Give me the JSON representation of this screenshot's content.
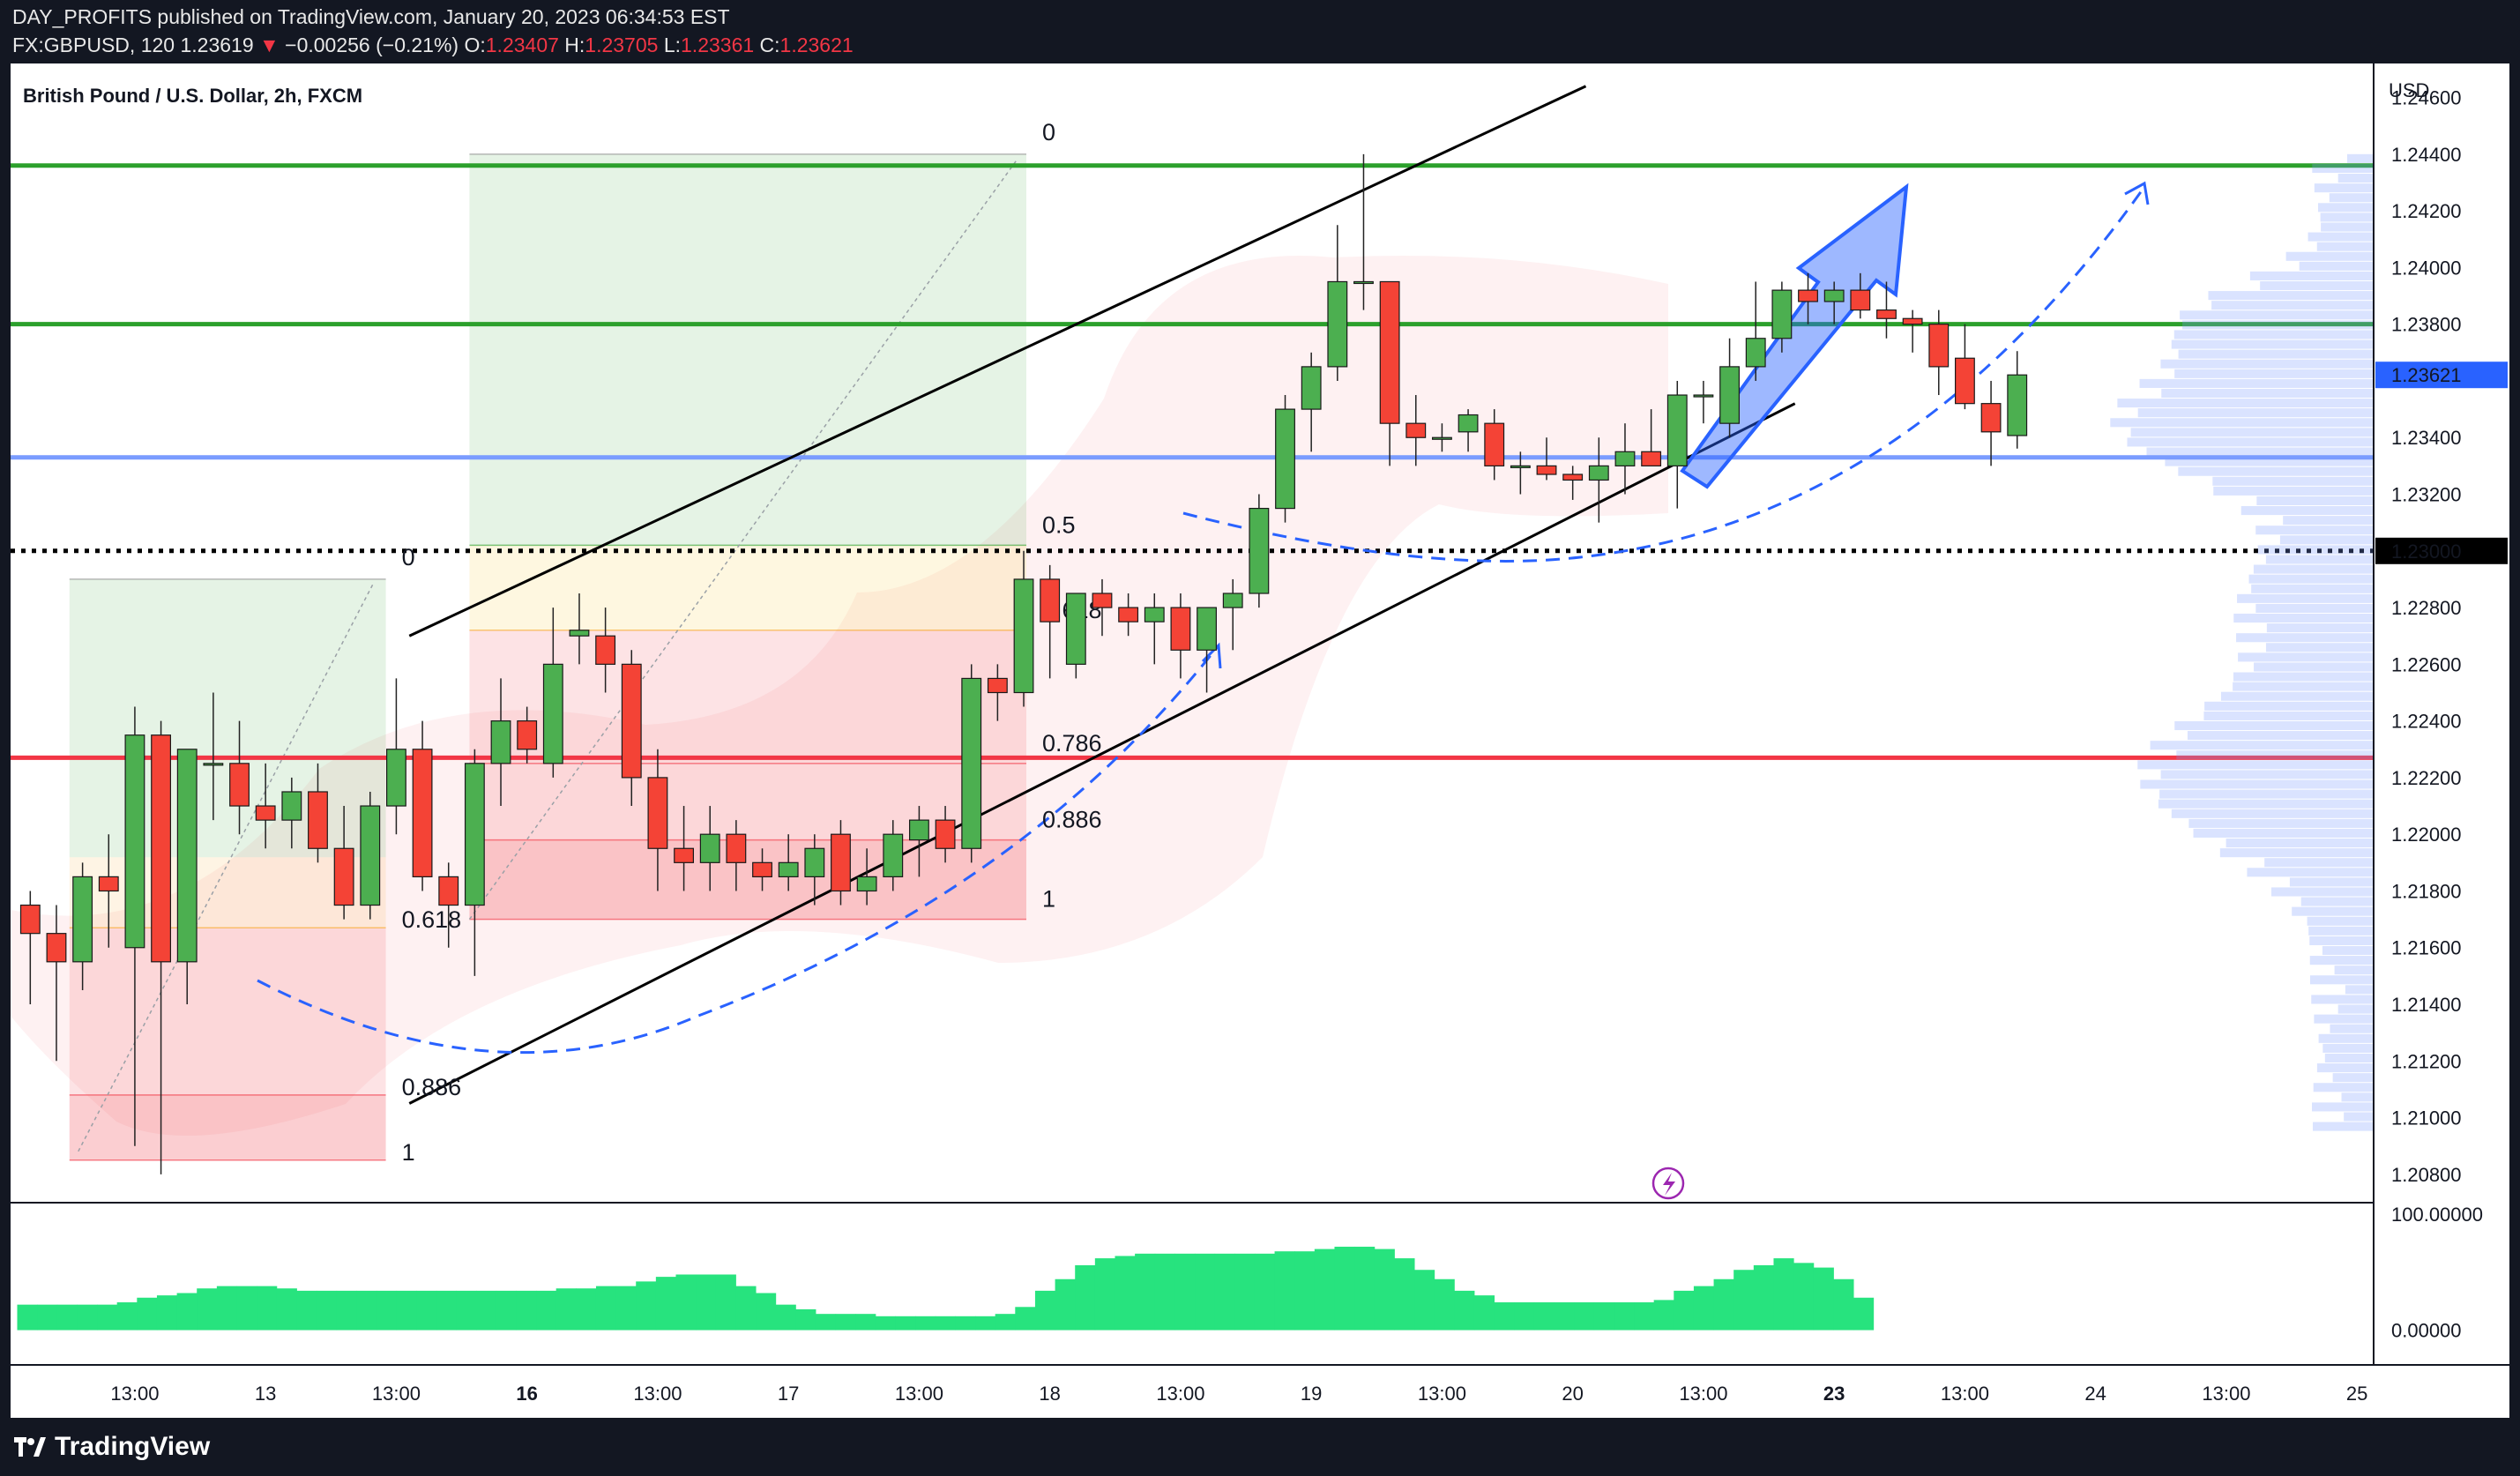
{
  "header": {
    "publisher": "DAY_PROFITS published on TradingView.com, January 20, 2023 06:34:53 EST",
    "symbol": "FX:GBPUSD, 120",
    "last": "1.23619",
    "change_arrow": "▼",
    "change": "−0.00256 (−0.21%)",
    "o_label": "O:",
    "o": "1.23407",
    "h_label": "H:",
    "h": "1.23705",
    "l_label": "L:",
    "l": "1.23361",
    "c_label": "C:",
    "c": "1.23621"
  },
  "footer": {
    "brand": "TradingView",
    "logo_icon": "tradingview-logo-icon"
  },
  "chart_data": [
    {
      "type": "candlestick",
      "title": "British Pound / U.S. Dollar, 2h, FXCM",
      "currency": "USD",
      "ylim": [
        1.207,
        1.2472
      ],
      "y_ticks": [
        "1.24600",
        "1.24400",
        "1.24200",
        "1.24000",
        "1.23800",
        "1.23600",
        "1.23400",
        "1.23200",
        "1.23000",
        "1.22800",
        "1.22600",
        "1.22400",
        "1.22200",
        "1.22000",
        "1.21800",
        "1.21600",
        "1.21400",
        "1.21200",
        "1.21000",
        "1.20800"
      ],
      "x_ticks": [
        {
          "label": "13:00",
          "bar": 4,
          "bold": false
        },
        {
          "label": "13",
          "bar": 9,
          "bold": false
        },
        {
          "label": "13:00",
          "bar": 14,
          "bold": false
        },
        {
          "label": "16",
          "bar": 19,
          "bold": true
        },
        {
          "label": "13:00",
          "bar": 24,
          "bold": false
        },
        {
          "label": "17",
          "bar": 29,
          "bold": false
        },
        {
          "label": "13:00",
          "bar": 34,
          "bold": false
        },
        {
          "label": "18",
          "bar": 39,
          "bold": false
        },
        {
          "label": "13:00",
          "bar": 44,
          "bold": false
        },
        {
          "label": "19",
          "bar": 49,
          "bold": false
        },
        {
          "label": "13:00",
          "bar": 54,
          "bold": false
        },
        {
          "label": "20",
          "bar": 59,
          "bold": false
        },
        {
          "label": "13:00",
          "bar": 64,
          "bold": false
        },
        {
          "label": "23",
          "bar": 69,
          "bold": true
        },
        {
          "label": "13:00",
          "bar": 74,
          "bold": false
        },
        {
          "label": "24",
          "bar": 79,
          "bold": false
        },
        {
          "label": "13:00",
          "bar": 84,
          "bold": false
        },
        {
          "label": "25",
          "bar": 89,
          "bold": false
        }
      ],
      "candles": [
        [
          1.2175,
          1.218,
          1.214,
          1.2165
        ],
        [
          1.2165,
          1.2175,
          1.212,
          1.2155
        ],
        [
          1.2155,
          1.219,
          1.2145,
          1.2185
        ],
        [
          1.2185,
          1.22,
          1.216,
          1.218
        ],
        [
          1.216,
          1.2245,
          1.209,
          1.2235
        ],
        [
          1.2235,
          1.224,
          1.208,
          1.2155
        ],
        [
          1.2155,
          1.223,
          1.214,
          1.223
        ],
        [
          1.2225,
          1.225,
          1.2205,
          1.2225
        ],
        [
          1.2225,
          1.224,
          1.22,
          1.221
        ],
        [
          1.221,
          1.2225,
          1.2195,
          1.2205
        ],
        [
          1.2205,
          1.222,
          1.2195,
          1.2215
        ],
        [
          1.2215,
          1.2225,
          1.219,
          1.2195
        ],
        [
          1.2195,
          1.221,
          1.217,
          1.2175
        ],
        [
          1.2175,
          1.2215,
          1.217,
          1.221
        ],
        [
          1.221,
          1.2255,
          1.22,
          1.223
        ],
        [
          1.223,
          1.224,
          1.218,
          1.2185
        ],
        [
          1.2185,
          1.219,
          1.216,
          1.2175
        ],
        [
          1.2175,
          1.223,
          1.215,
          1.2225
        ],
        [
          1.2225,
          1.2255,
          1.221,
          1.224
        ],
        [
          1.224,
          1.2245,
          1.2225,
          1.223
        ],
        [
          1.2225,
          1.228,
          1.222,
          1.226
        ],
        [
          1.227,
          1.2285,
          1.226,
          1.2272
        ],
        [
          1.227,
          1.228,
          1.225,
          1.226
        ],
        [
          1.226,
          1.2265,
          1.221,
          1.222
        ],
        [
          1.222,
          1.223,
          1.218,
          1.2195
        ],
        [
          1.2195,
          1.221,
          1.218,
          1.219
        ],
        [
          1.219,
          1.221,
          1.218,
          1.22
        ],
        [
          1.22,
          1.2205,
          1.218,
          1.219
        ],
        [
          1.219,
          1.2195,
          1.218,
          1.2185
        ],
        [
          1.2185,
          1.22,
          1.218,
          1.219
        ],
        [
          1.2185,
          1.22,
          1.2175,
          1.2195
        ],
        [
          1.22,
          1.2205,
          1.2175,
          1.218
        ],
        [
          1.218,
          1.2195,
          1.2175,
          1.2185
        ],
        [
          1.2185,
          1.2205,
          1.218,
          1.22
        ],
        [
          1.2198,
          1.221,
          1.2185,
          1.2205
        ],
        [
          1.2205,
          1.221,
          1.219,
          1.2195
        ],
        [
          1.2195,
          1.226,
          1.219,
          1.2255
        ],
        [
          1.2255,
          1.226,
          1.224,
          1.225
        ],
        [
          1.225,
          1.23,
          1.2245,
          1.229
        ],
        [
          1.229,
          1.2295,
          1.2255,
          1.2275
        ],
        [
          1.226,
          1.2285,
          1.2255,
          1.2285
        ],
        [
          1.2285,
          1.229,
          1.227,
          1.228
        ],
        [
          1.228,
          1.2285,
          1.227,
          1.2275
        ],
        [
          1.2275,
          1.2285,
          1.226,
          1.228
        ],
        [
          1.228,
          1.2285,
          1.2255,
          1.2265
        ],
        [
          1.2265,
          1.228,
          1.225,
          1.228
        ],
        [
          1.228,
          1.229,
          1.2265,
          1.2285
        ],
        [
          1.2285,
          1.232,
          1.228,
          1.2315
        ],
        [
          1.2315,
          1.2355,
          1.231,
          1.235
        ],
        [
          1.235,
          1.237,
          1.2335,
          1.2365
        ],
        [
          1.2365,
          1.2415,
          1.236,
          1.2395
        ],
        [
          1.2395,
          1.244,
          1.2385,
          1.2395
        ],
        [
          1.2395,
          1.2395,
          1.233,
          1.2345
        ],
        [
          1.2345,
          1.2355,
          1.233,
          1.234
        ],
        [
          1.234,
          1.2345,
          1.2335,
          1.234
        ],
        [
          1.2342,
          1.235,
          1.2335,
          1.2348
        ],
        [
          1.2345,
          1.235,
          1.2325,
          1.233
        ],
        [
          1.233,
          1.2335,
          1.232,
          1.233
        ],
        [
          1.233,
          1.234,
          1.2325,
          1.2327
        ],
        [
          1.2327,
          1.233,
          1.2318,
          1.2325
        ],
        [
          1.2325,
          1.234,
          1.231,
          1.233
        ],
        [
          1.233,
          1.2345,
          1.232,
          1.2335
        ],
        [
          1.2335,
          1.235,
          1.233,
          1.233
        ],
        [
          1.233,
          1.236,
          1.2315,
          1.2355
        ],
        [
          1.2355,
          1.236,
          1.2345,
          1.2355
        ],
        [
          1.2345,
          1.2375,
          1.234,
          1.2365
        ],
        [
          1.2365,
          1.2395,
          1.236,
          1.2375
        ],
        [
          1.2375,
          1.2395,
          1.237,
          1.2392
        ],
        [
          1.2392,
          1.2398,
          1.238,
          1.2388
        ],
        [
          1.2388,
          1.2395,
          1.238,
          1.2392
        ],
        [
          1.2392,
          1.2398,
          1.2382,
          1.2385
        ],
        [
          1.2385,
          1.2395,
          1.2375,
          1.2382
        ],
        [
          1.2382,
          1.2385,
          1.237,
          1.238
        ],
        [
          1.238,
          1.2385,
          1.2355,
          1.2365
        ],
        [
          1.2368,
          1.238,
          1.235,
          1.2352
        ],
        [
          1.2352,
          1.236,
          1.233,
          1.2342
        ],
        [
          1.23407,
          1.23705,
          1.23361,
          1.23621
        ]
      ],
      "hlines": [
        {
          "price": 1.2436,
          "color": "#2ca02c",
          "width": 5,
          "style": "solid"
        },
        {
          "price": 1.238,
          "color": "#2ca02c",
          "width": 5,
          "style": "solid"
        },
        {
          "price": 1.2333,
          "color": "#7a9cff",
          "width": 5,
          "style": "solid"
        },
        {
          "price": 1.23,
          "color": "#000000",
          "width": 5,
          "style": "dotted"
        },
        {
          "price": 1.2227,
          "color": "#f23645",
          "width": 5,
          "style": "solid"
        }
      ],
      "price_tags": [
        {
          "label": "1.23621",
          "price": 1.23621,
          "bg": "#2962ff",
          "fg": "#ffffff"
        },
        {
          "label": "1.23000",
          "price": 1.23,
          "bg": "#000000",
          "fg": "#ffffff"
        }
      ],
      "fib_left": {
        "levels": [
          {
            "label": "0",
            "price": 1.229,
            "color": "#8a8a8a"
          },
          {
            "label": "0.618",
            "price": 1.2167,
            "color": "#f6a623"
          },
          {
            "label": "0.886",
            "price": 1.2108,
            "color": "#f23645"
          },
          {
            "label": "1",
            "price": 1.2085,
            "color": "#f23645"
          }
        ]
      },
      "fib_right": {
        "levels": [
          {
            "label": "0",
            "price": 1.244,
            "color": "#8a8a8a"
          },
          {
            "label": "0.5",
            "price": 1.2302,
            "color": "#2ca02c"
          },
          {
            "label": "0.618",
            "price": 1.2272,
            "color": "#f6a623"
          },
          {
            "label": "0.786",
            "price": 1.2225,
            "color": "#f23645"
          },
          {
            "label": "0.886",
            "price": 1.2198,
            "color": "#f23645"
          },
          {
            "label": "1",
            "price": 1.217,
            "color": "#f23645"
          }
        ]
      },
      "channel": [
        {
          "from": [
            1.227,
            15
          ],
          "to": [
            1.2464,
            60
          ],
          "color": "#000000"
        },
        {
          "from": [
            1.2105,
            15
          ],
          "to": [
            1.2352,
            68
          ],
          "color": "#000000"
        }
      ],
      "volume_profile_icon": "volume-profile-icon",
      "alert_icon": "lightning-icon"
    },
    {
      "type": "bar",
      "title": "",
      "y_ticks": [
        "100.00000",
        "0.00000"
      ],
      "ylim": [
        -30,
        110
      ],
      "color": "#27e37e",
      "values": [
        22,
        22,
        22,
        22,
        22,
        24,
        28,
        30,
        32,
        36,
        38,
        38,
        38,
        36,
        34,
        34,
        34,
        34,
        34,
        34,
        34,
        34,
        34,
        34,
        34,
        34,
        34,
        36,
        36,
        38,
        38,
        42,
        46,
        48,
        48,
        48,
        38,
        32,
        22,
        18,
        14,
        14,
        14,
        12,
        12,
        12,
        12,
        12,
        12,
        14,
        20,
        34,
        44,
        56,
        62,
        64,
        66,
        66,
        66,
        66,
        66,
        66,
        66,
        68,
        68,
        70,
        72,
        72,
        70,
        62,
        52,
        44,
        34,
        30,
        24,
        24,
        24,
        24,
        24,
        24,
        24,
        24,
        26,
        34,
        38,
        44,
        52,
        56,
        62,
        58,
        54,
        44,
        28
      ]
    }
  ]
}
